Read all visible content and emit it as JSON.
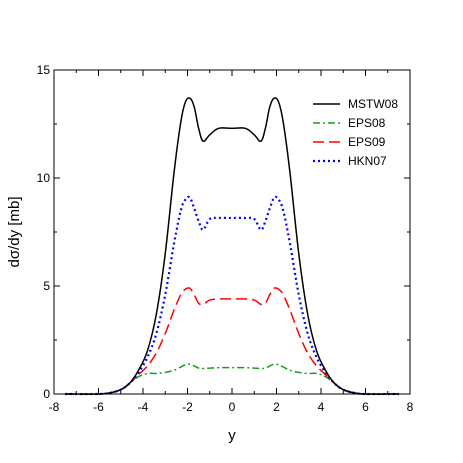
{
  "chart_data": {
    "type": "line",
    "xlabel": "y",
    "ylabel": "dσ/dy [mb]",
    "xlim": [
      -8,
      8
    ],
    "ylim": [
      0,
      15
    ],
    "x_ticks": [
      "-8",
      "-6",
      "-4",
      "-2",
      "0",
      "2",
      "4",
      "6",
      "8"
    ],
    "y_ticks": [
      "0",
      "5",
      "10",
      "15"
    ],
    "legend_position": "top-right",
    "grid": false,
    "series": [
      {
        "name": "MSTW08",
        "color": "#000000",
        "style": "solid",
        "x": [
          -7.5,
          -6,
          -5.5,
          -5,
          -4.6,
          -4.2,
          -3.8,
          -3.4,
          -3,
          -2.6,
          -2.3,
          -2.1,
          -1.9,
          -1.7,
          -1.5,
          -1.3,
          -1,
          -0.6,
          0,
          0.6,
          1,
          1.3,
          1.5,
          1.7,
          1.9,
          2.1,
          2.3,
          2.6,
          3,
          3.4,
          3.8,
          4.2,
          4.6,
          5,
          5.5,
          6,
          7.5
        ],
        "y": [
          0,
          0,
          0.05,
          0.2,
          0.5,
          1.1,
          2.0,
          3.7,
          6.5,
          10.3,
          12.6,
          13.5,
          13.7,
          13.3,
          12.3,
          11.7,
          12.0,
          12.3,
          12.3,
          12.3,
          12.0,
          11.7,
          12.3,
          13.3,
          13.7,
          13.5,
          12.6,
          10.3,
          6.5,
          3.7,
          2.0,
          1.1,
          0.5,
          0.2,
          0.05,
          0,
          0
        ]
      },
      {
        "name": "EPS08",
        "color": "#1f9a1f",
        "style": "dash-dot",
        "x": [
          -7.5,
          -6,
          -5.5,
          -5,
          -4.6,
          -4.2,
          -3.8,
          -3.4,
          -3,
          -2.6,
          -2.3,
          -2.1,
          -1.9,
          -1.7,
          -1.5,
          -1.3,
          -1,
          -0.6,
          0,
          0.6,
          1,
          1.3,
          1.5,
          1.7,
          1.9,
          2.1,
          2.3,
          2.6,
          3,
          3.4,
          3.8,
          4.2,
          4.6,
          5,
          5.5,
          6,
          7.5
        ],
        "y": [
          0,
          0,
          0.05,
          0.2,
          0.5,
          0.8,
          0.95,
          0.95,
          1.0,
          1.1,
          1.25,
          1.35,
          1.38,
          1.3,
          1.2,
          1.18,
          1.2,
          1.22,
          1.22,
          1.22,
          1.2,
          1.18,
          1.2,
          1.3,
          1.38,
          1.35,
          1.25,
          1.1,
          1.0,
          0.95,
          0.95,
          0.8,
          0.5,
          0.2,
          0.05,
          0,
          0
        ]
      },
      {
        "name": "EPS09",
        "color": "#ff0000",
        "style": "dashed",
        "x": [
          -7.5,
          -6,
          -5.5,
          -5,
          -4.6,
          -4.2,
          -3.8,
          -3.4,
          -3,
          -2.6,
          -2.3,
          -2.1,
          -1.9,
          -1.7,
          -1.5,
          -1.3,
          -1,
          -0.6,
          0,
          0.6,
          1,
          1.3,
          1.5,
          1.7,
          1.9,
          2.1,
          2.3,
          2.6,
          3,
          3.4,
          3.8,
          4.2,
          4.6,
          5,
          5.5,
          6,
          7.5
        ],
        "y": [
          0,
          0,
          0.05,
          0.2,
          0.5,
          0.9,
          1.3,
          1.9,
          2.8,
          3.9,
          4.6,
          4.85,
          4.9,
          4.6,
          4.2,
          4.15,
          4.35,
          4.4,
          4.4,
          4.4,
          4.35,
          4.15,
          4.2,
          4.6,
          4.9,
          4.85,
          4.6,
          3.9,
          2.8,
          1.9,
          1.3,
          0.9,
          0.5,
          0.2,
          0.05,
          0,
          0
        ]
      },
      {
        "name": "HKN07",
        "color": "#0000ff",
        "style": "dotted",
        "x": [
          -7.5,
          -6,
          -5.5,
          -5,
          -4.6,
          -4.2,
          -3.8,
          -3.4,
          -3,
          -2.6,
          -2.3,
          -2.1,
          -1.9,
          -1.7,
          -1.5,
          -1.3,
          -1,
          -0.6,
          0,
          0.6,
          1,
          1.3,
          1.5,
          1.7,
          1.9,
          2.1,
          2.3,
          2.6,
          3,
          3.4,
          3.8,
          4.2,
          4.6,
          5,
          5.5,
          6,
          7.5
        ],
        "y": [
          0,
          0,
          0.05,
          0.2,
          0.5,
          1.0,
          1.7,
          2.8,
          4.6,
          7.0,
          8.5,
          9.0,
          9.1,
          8.6,
          8.0,
          7.6,
          8.1,
          8.15,
          8.15,
          8.15,
          8.1,
          7.6,
          8.0,
          8.6,
          9.1,
          9.0,
          8.5,
          7.0,
          4.6,
          2.8,
          1.7,
          1.0,
          0.5,
          0.2,
          0.05,
          0,
          0
        ]
      }
    ]
  }
}
